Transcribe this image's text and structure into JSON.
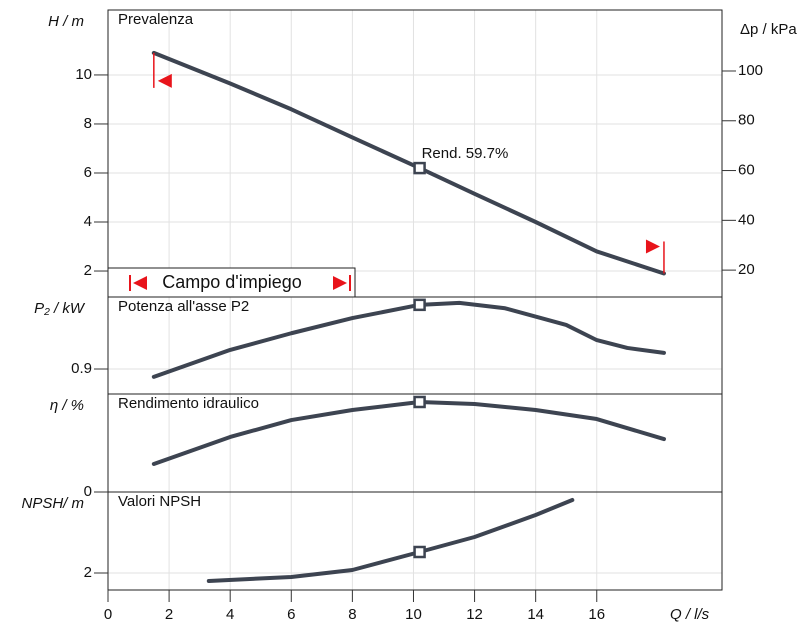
{
  "chart_data": [
    {
      "type": "line",
      "title": "Prevalenza",
      "y_label": "H / m",
      "y2_label": "Δp / kPa",
      "xlim": [
        0,
        20.1
      ],
      "ylim": [
        0.94,
        12.65
      ],
      "yticks": [
        2,
        4,
        6,
        8,
        10
      ],
      "y2lim": [
        9.2,
        124.5
      ],
      "y2ticks": [
        20,
        40,
        60,
        80,
        100
      ],
      "grid": true,
      "x": [
        1.5,
        4,
        6,
        8,
        10.2,
        12,
        14,
        16,
        18.2
      ],
      "series": [
        {
          "color": "#3d4451",
          "values": [
            10.9,
            9.65,
            8.6,
            7.45,
            6.2,
            5.15,
            4.0,
            2.8,
            1.9
          ]
        }
      ],
      "duty": {
        "x": 10.2,
        "y": 6.2,
        "label": "Rend.  59.7%"
      },
      "range": {
        "label": "Campo d'impiego",
        "min": 1.5,
        "max": 18.2,
        "color": "#e8141b"
      }
    },
    {
      "type": "line",
      "title": "Potenza all'asse P2",
      "y_label": "P₂ / kW",
      "xlim": [
        0,
        20.1
      ],
      "ylim": [
        0.849,
        1.047
      ],
      "yticks": [
        0.9
      ],
      "grid": true,
      "x": [
        1.5,
        4,
        6,
        8,
        10.2,
        11.5,
        13,
        15,
        16,
        17,
        18.2
      ],
      "series": [
        {
          "color": "#3d4451",
          "values": [
            0.884,
            0.939,
            0.973,
            1.004,
            1.031,
            1.035,
            1.024,
            0.99,
            0.959,
            0.943,
            0.933
          ]
        }
      ],
      "duty": {
        "x": 10.2,
        "y": 1.031
      }
    },
    {
      "type": "line",
      "title": "Rendimento idraulico",
      "y_label": "η / %",
      "xlim": [
        0,
        20.1
      ],
      "ylim": [
        0,
        65
      ],
      "yticks": [
        0
      ],
      "grid": true,
      "x": [
        1.5,
        4,
        6,
        8,
        10.2,
        12,
        14,
        16,
        18.2
      ],
      "series": [
        {
          "color": "#3d4451",
          "values": [
            18.6,
            36.5,
            47.7,
            54.4,
            59.7,
            58.4,
            54.4,
            48.4,
            35.1
          ]
        }
      ],
      "duty": {
        "x": 10.2,
        "y": 59.7
      }
    },
    {
      "type": "line",
      "title": "Valori NPSH",
      "y_label": "NPSH/ m",
      "x_label": "Q / l/s",
      "xlim": [
        0,
        20.1
      ],
      "ylim": [
        1.32,
        5.24
      ],
      "yticks": [
        2
      ],
      "grid": true,
      "xticks": [
        0,
        2,
        4,
        6,
        8,
        10,
        12,
        14,
        16
      ],
      "x": [
        3.3,
        6,
        8,
        10.2,
        12,
        14,
        15.2
      ],
      "series": [
        {
          "color": "#3d4451",
          "values": [
            1.68,
            1.84,
            2.12,
            2.84,
            3.44,
            4.32,
            4.92
          ]
        }
      ],
      "duty": {
        "x": 10.2,
        "y": 2.84
      }
    }
  ]
}
